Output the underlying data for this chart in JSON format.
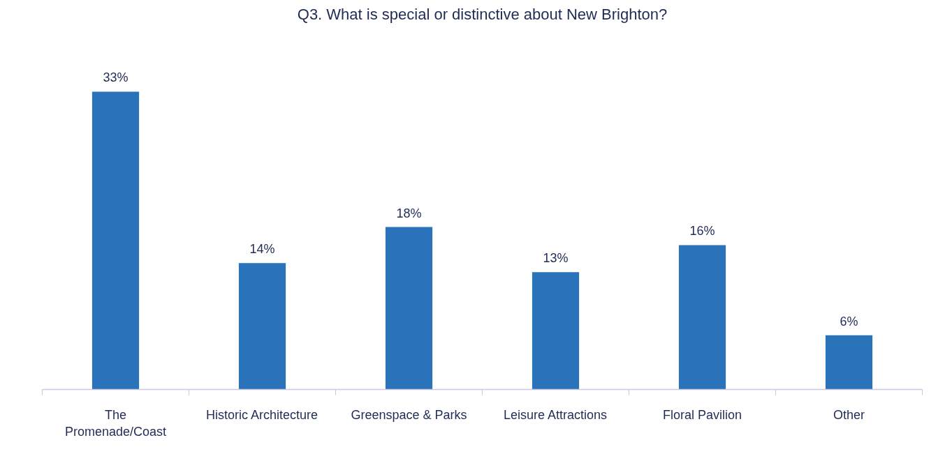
{
  "chart_data": {
    "type": "bar",
    "title": "Q3. What is special or distinctive about New Brighton?",
    "categories": [
      "The\nPromenade/Coast",
      "Historic Architecture",
      "Greenspace & Parks",
      "Leisure Attractions",
      "Floral Pavilion",
      "Other"
    ],
    "values": [
      33,
      14,
      18,
      13,
      16,
      6
    ],
    "value_labels": [
      "33%",
      "14%",
      "18%",
      "13%",
      "16%",
      "6%"
    ],
    "color": "#2a73bb",
    "grid": false
  }
}
